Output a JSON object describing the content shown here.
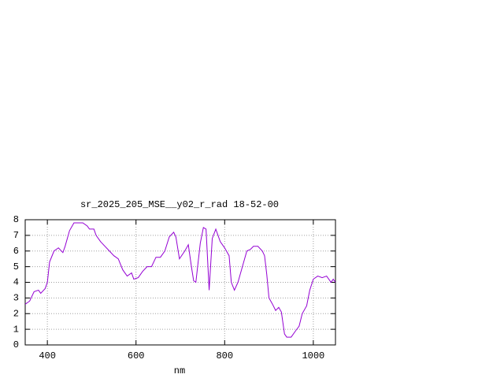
{
  "chart_data": {
    "type": "line",
    "title": "sr_2025_205_MSE__y02_r_rad 18-52-00",
    "x_label": "nm",
    "x": [
      350,
      360,
      370,
      380,
      385,
      395,
      400,
      405,
      415,
      425,
      435,
      440,
      450,
      460,
      470,
      480,
      490,
      495,
      505,
      510,
      520,
      530,
      540,
      550,
      560,
      570,
      580,
      590,
      595,
      605,
      615,
      625,
      635,
      645,
      655,
      665,
      675,
      685,
      690,
      698,
      710,
      718,
      725,
      730,
      735,
      745,
      752,
      758,
      765,
      772,
      780,
      790,
      800,
      810,
      815,
      822,
      830,
      840,
      850,
      858,
      865,
      875,
      885,
      890,
      895,
      900,
      908,
      915,
      922,
      928,
      935,
      940,
      950,
      960,
      968,
      975,
      985,
      992,
      1000,
      1010,
      1020,
      1030,
      1040,
      1045,
      1050
    ],
    "series": [
      {
        "color": "#9400d3",
        "values": [
          2.6,
          2.8,
          3.4,
          3.5,
          3.3,
          3.6,
          4.0,
          5.3,
          6.0,
          6.2,
          5.9,
          6.3,
          7.3,
          7.8,
          7.8,
          7.8,
          7.6,
          7.4,
          7.4,
          7.0,
          6.6,
          6.3,
          6.0,
          5.7,
          5.5,
          4.8,
          4.4,
          4.6,
          4.2,
          4.3,
          4.7,
          5.0,
          5.0,
          5.6,
          5.6,
          6.0,
          6.9,
          7.2,
          6.9,
          5.5,
          6.0,
          6.4,
          5.0,
          4.1,
          4.0,
          6.5,
          7.5,
          7.4,
          3.5,
          6.8,
          7.4,
          6.6,
          6.2,
          5.7,
          4.0,
          3.5,
          4.0,
          5.0,
          6.0,
          6.1,
          6.3,
          6.3,
          6.0,
          5.7,
          4.5,
          3.0,
          2.6,
          2.2,
          2.4,
          2.1,
          0.7,
          0.5,
          0.5,
          0.9,
          1.2,
          2.0,
          2.5,
          3.5,
          4.2,
          4.4,
          4.3,
          4.4,
          4.0,
          4.2,
          4.0
        ]
      }
    ],
    "xlim": [
      350,
      1050
    ],
    "ylim": [
      0,
      8
    ],
    "xticks": [
      400,
      600,
      800,
      1000
    ],
    "yticks": [
      0,
      1,
      2,
      3,
      4,
      5,
      6,
      7,
      8
    ],
    "grid": true
  }
}
